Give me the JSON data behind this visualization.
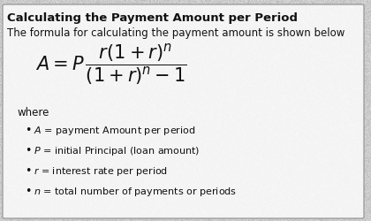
{
  "title": "Calculating the Payment Amount per Period",
  "subtitle": "The formula for calculating the payment amount is shown below",
  "where_label": "where",
  "bullet_items": [
    "$A$ = payment Amount per period",
    "$P$ = initial Principal (loan amount)",
    "$r$ = interest rate per period",
    "$n$ = total number of payments or periods"
  ],
  "bg_color": "#f0f0f0",
  "outer_bg": "#c8c8c8",
  "title_fontsize": 9.5,
  "subtitle_fontsize": 8.5,
  "formula_fontsize": 15,
  "where_fontsize": 8.5,
  "bullet_fontsize": 8.0,
  "text_color": "#111111",
  "title_color": "#111111",
  "border_color": "#aaaaaa",
  "white_card_color": "#f8f8f8"
}
